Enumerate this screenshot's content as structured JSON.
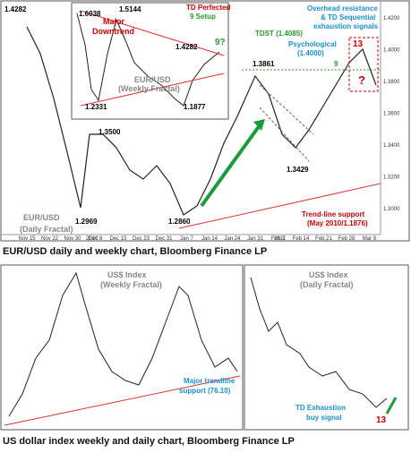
{
  "figures": [
    {
      "caption": "EUR/USD daily and weekly chart, Bloomberg Finance LP",
      "annotations": [
        "1.4282",
        "1.6038",
        "1.5144",
        "Major",
        "Downtrend",
        "EUR/USD",
        "(Weekly Fractal)",
        "1.4282",
        "1.2331",
        "1.1877",
        "TD Perfected",
        "9 Setup",
        "9?",
        "1.3500",
        "1.2969",
        "1.2860",
        "EUR/USD",
        "(Daily Fractal)",
        "1.3861",
        "1.3429",
        "TDST (1.4085)",
        "Psychological",
        "(1.4000)",
        "Overhead resistance",
        "& TD Sequential",
        "exhaustion signals",
        "13",
        "9",
        "?",
        "Trend-line support",
        "(May 2010/1.1876)"
      ],
      "dates": [
        "Nov 15",
        "Nov 22",
        "Nov 30",
        "Dec 8",
        "Dec 15",
        "Dec 23",
        "Dec 31",
        "Jan 7",
        "Jan 14",
        "Jan 24",
        "Jan 31",
        "Feb 7",
        "Feb 14",
        "Feb 21",
        "Feb 28",
        "Mar 8"
      ],
      "years": [
        "2010",
        "2011"
      ],
      "price_axis": [
        "1.4200",
        "1.4000",
        "1.3800",
        "1.3600",
        "1.3400",
        "1.3200",
        "1.3000"
      ]
    },
    {
      "caption": "US dollar index weekly and daily chart, Bloomberg Finance LP",
      "annotations": [
        "US$ Index",
        "(Weekly Fractal)",
        "Major trendline",
        "support (76.10)",
        "US$ Index",
        "(Daily Fractal)",
        "TD Exhaustion",
        "buy signal",
        "13"
      ]
    }
  ]
}
